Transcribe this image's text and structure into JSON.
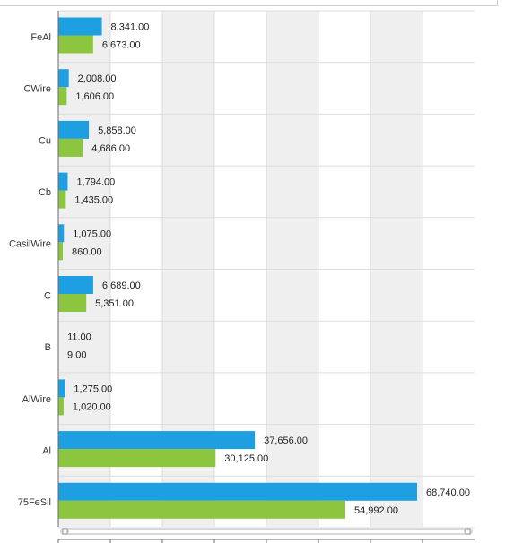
{
  "chart_data": {
    "type": "bar",
    "orientation": "horizontal",
    "categories": [
      "FeAl",
      "CWire",
      "Cu",
      "Cb",
      "CasilWire",
      "C",
      "B",
      "AlWire",
      "Al",
      "75FeSil"
    ],
    "series": [
      {
        "values": [
          8341,
          2008,
          5858,
          1794,
          1075,
          6689,
          11,
          1275,
          37656,
          68740
        ],
        "labels": [
          "8,341.00",
          "2,008.00",
          "5,858.00",
          "1,794.00",
          "1,075.00",
          "6,689.00",
          "11.00",
          "1,275.00",
          "37,656.00",
          "68,740.00"
        ],
        "color": "#1e9fe2"
      },
      {
        "values": [
          6673,
          1606,
          4686,
          1435,
          860,
          5351,
          9,
          1020,
          30125,
          54992
        ],
        "labels": [
          "6,673.00",
          "1,606.00",
          "4,686.00",
          "1,435.00",
          "860.00",
          "5,351.00",
          "9.00",
          "1,020.00",
          "30,125.00",
          "54,992.00"
        ],
        "color": "#8cc63f"
      }
    ],
    "xlim": [
      0,
      80000
    ],
    "grid": true,
    "legend": "none"
  },
  "colors": {
    "band_shade": "#efefef",
    "gridline": "#dedede",
    "axis": "#6b6b6b",
    "scrollbar_track": "#d9d9d9",
    "scrollbar_thumb": "#ffffff"
  }
}
